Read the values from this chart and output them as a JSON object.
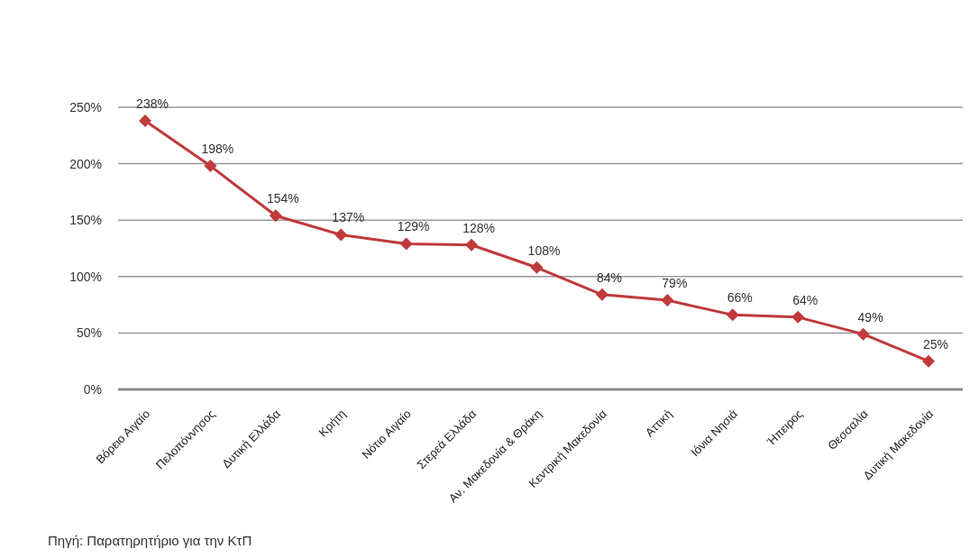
{
  "chart_data": {
    "type": "line",
    "categories": [
      "Βόρειο Αιγαίο",
      "Πελοπόννησος",
      "Δυτική Ελλάδα",
      "Κρήτη",
      "Νότιο Αιγαίο",
      "Στερεά Ελλάδα",
      "Αν. Μακεδονία & Θράκη",
      "Κεντρική Μακεδονία",
      "Αττική",
      "Ιόνια Νησιά",
      "Ήπειρος",
      "Θεσσαλία",
      "Δυτική Μακεδονία"
    ],
    "series": [
      {
        "color": "#c0393b",
        "values": [
          238,
          198,
          154,
          137,
          129,
          128,
          108,
          84,
          79,
          66,
          64,
          49,
          25
        ],
        "value_labels": [
          "238%",
          "198%",
          "154%",
          "137%",
          "129%",
          "128%",
          "108%",
          "84%",
          "79%",
          "66%",
          "64%",
          "49%",
          "25%"
        ]
      }
    ],
    "ylim": [
      0,
      250
    ],
    "yticks": [
      {
        "value": 0,
        "label": "0%"
      },
      {
        "value": 50,
        "label": "50%"
      },
      {
        "value": 100,
        "label": "100%"
      },
      {
        "value": 150,
        "label": "150%"
      },
      {
        "value": 200,
        "label": "200%"
      },
      {
        "value": 250,
        "label": "250%"
      }
    ],
    "grid": "y",
    "marker": "diamond",
    "line_style": "solid",
    "annotations": [
      "Πηγή: Παρατηρητήριο για την ΚτΠ"
    ]
  }
}
